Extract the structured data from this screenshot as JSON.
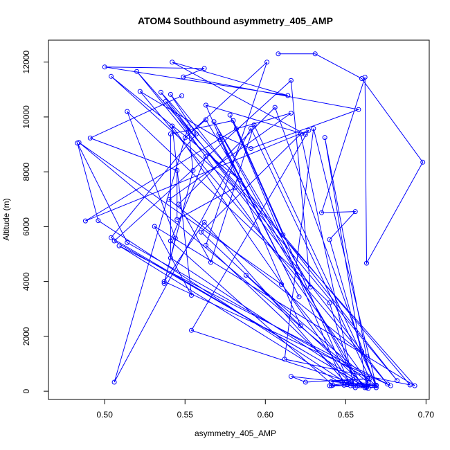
{
  "chart_data": {
    "type": "line",
    "title": "ATOM4 Southbound asymmetry_405_AMP",
    "xlabel": "asymmetry_405_AMP",
    "ylabel": "Altitude (m)",
    "xlim": [
      0.465,
      0.702
    ],
    "ylim": [
      -300,
      12800
    ],
    "xticks": [
      0.5,
      0.55,
      0.6,
      0.65,
      0.7
    ],
    "xtick_labels": [
      "0.50",
      "0.55",
      "0.60",
      "0.65",
      "0.70"
    ],
    "yticks": [
      0,
      2000,
      4000,
      6000,
      8000,
      10000,
      12000
    ],
    "ytick_labels": [
      "0",
      "2000",
      "4000",
      "6000",
      "8000",
      "10000",
      "12000"
    ],
    "grid": false,
    "colors": {
      "series": "#0000ff"
    },
    "series": [
      {
        "x": [
          0.608,
          0.631,
          0.66,
          0.698,
          0.663,
          0.662,
          0.635,
          0.656,
          0.64,
          0.66,
          0.669,
          0.641,
          0.665,
          0.591,
          0.506,
          0.552,
          0.555,
          0.537,
          0.544,
          0.514,
          0.64,
          0.656,
          0.662,
          0.61,
          0.484,
          0.664,
          0.64,
          0.668,
          0.616,
          0.625,
          0.664,
          0.514,
          0.483,
          0.496,
          0.653,
          0.641,
          0.666,
          0.669,
          0.593,
          0.566,
          0.546,
          0.606,
          0.669,
          0.651,
          0.562,
          0.537,
          0.678,
          0.509,
          0.649,
          0.578,
          0.611,
          0.69,
          0.612,
          0.63,
          0.669,
          0.588,
          0.664,
          0.653,
          0.542,
          0.554,
          0.531,
          0.693,
          0.52,
          0.563,
          0.541,
          0.642,
          0.652,
          0.58,
          0.541,
          0.541,
          0.663,
          0.637,
          0.663,
          0.54,
          0.616,
          0.582,
          0.488,
          0.627,
          0.554,
          0.658,
          0.568,
          0.628,
          0.616,
          0.506,
          0.663,
          0.664,
          0.538,
          0.682,
          0.541,
          0.557,
          0.504,
          0.66,
          0.563,
          0.55,
          0.601,
          0.563,
          0.655,
          0.622,
          0.56,
          0.622,
          0.563,
          0.625,
          0.542,
          0.614,
          0.5,
          0.562,
          0.549,
          0.658,
          0.591,
          0.571,
          0.621,
          0.572,
          0.522,
          0.676,
          0.535,
          0.584,
          0.504,
          0.581,
          0.545,
          0.545,
          0.491,
          0.548
        ],
        "y": [
          12300,
          12300,
          11400,
          8350,
          4670,
          11450,
          6510,
          6550,
          5530,
          1450,
          220,
          350,
          460,
          9590,
          330,
          9640,
          8050,
          3930,
          5580,
          10200,
          3220,
          130,
          130,
          3900,
          9070,
          310,
          200,
          200,
          540,
          330,
          460,
          5420,
          9050,
          6220,
          200,
          200,
          200,
          220,
          9710,
          4700,
          6820,
          10350,
          130,
          240,
          6160,
          4000,
          200,
          5300,
          220,
          10070,
          5700,
          230,
          1170,
          9580,
          200,
          4230,
          100,
          300,
          9670,
          3500,
          6010,
          200,
          11660,
          8560,
          5480,
          220,
          330,
          9870,
          9380,
          4860,
          180,
          9250,
          1260,
          6990,
          10140,
          9570,
          6210,
          9510,
          2220,
          230,
          9830,
          3800,
          11330,
          5480,
          140,
          330,
          10570,
          390,
          10820,
          9380,
          5600,
          230,
          9900,
          9240,
          12000,
          5320,
          200,
          9380,
          5800,
          2380,
          10430,
          9360,
          12000,
          10780,
          11820,
          11770,
          11460,
          10270,
          8850,
          9370,
          3440,
          9180,
          10930,
          260,
          10900,
          7710,
          11480,
          7420,
          6260,
          8050,
          9230,
          10770
        ]
      }
    ]
  }
}
